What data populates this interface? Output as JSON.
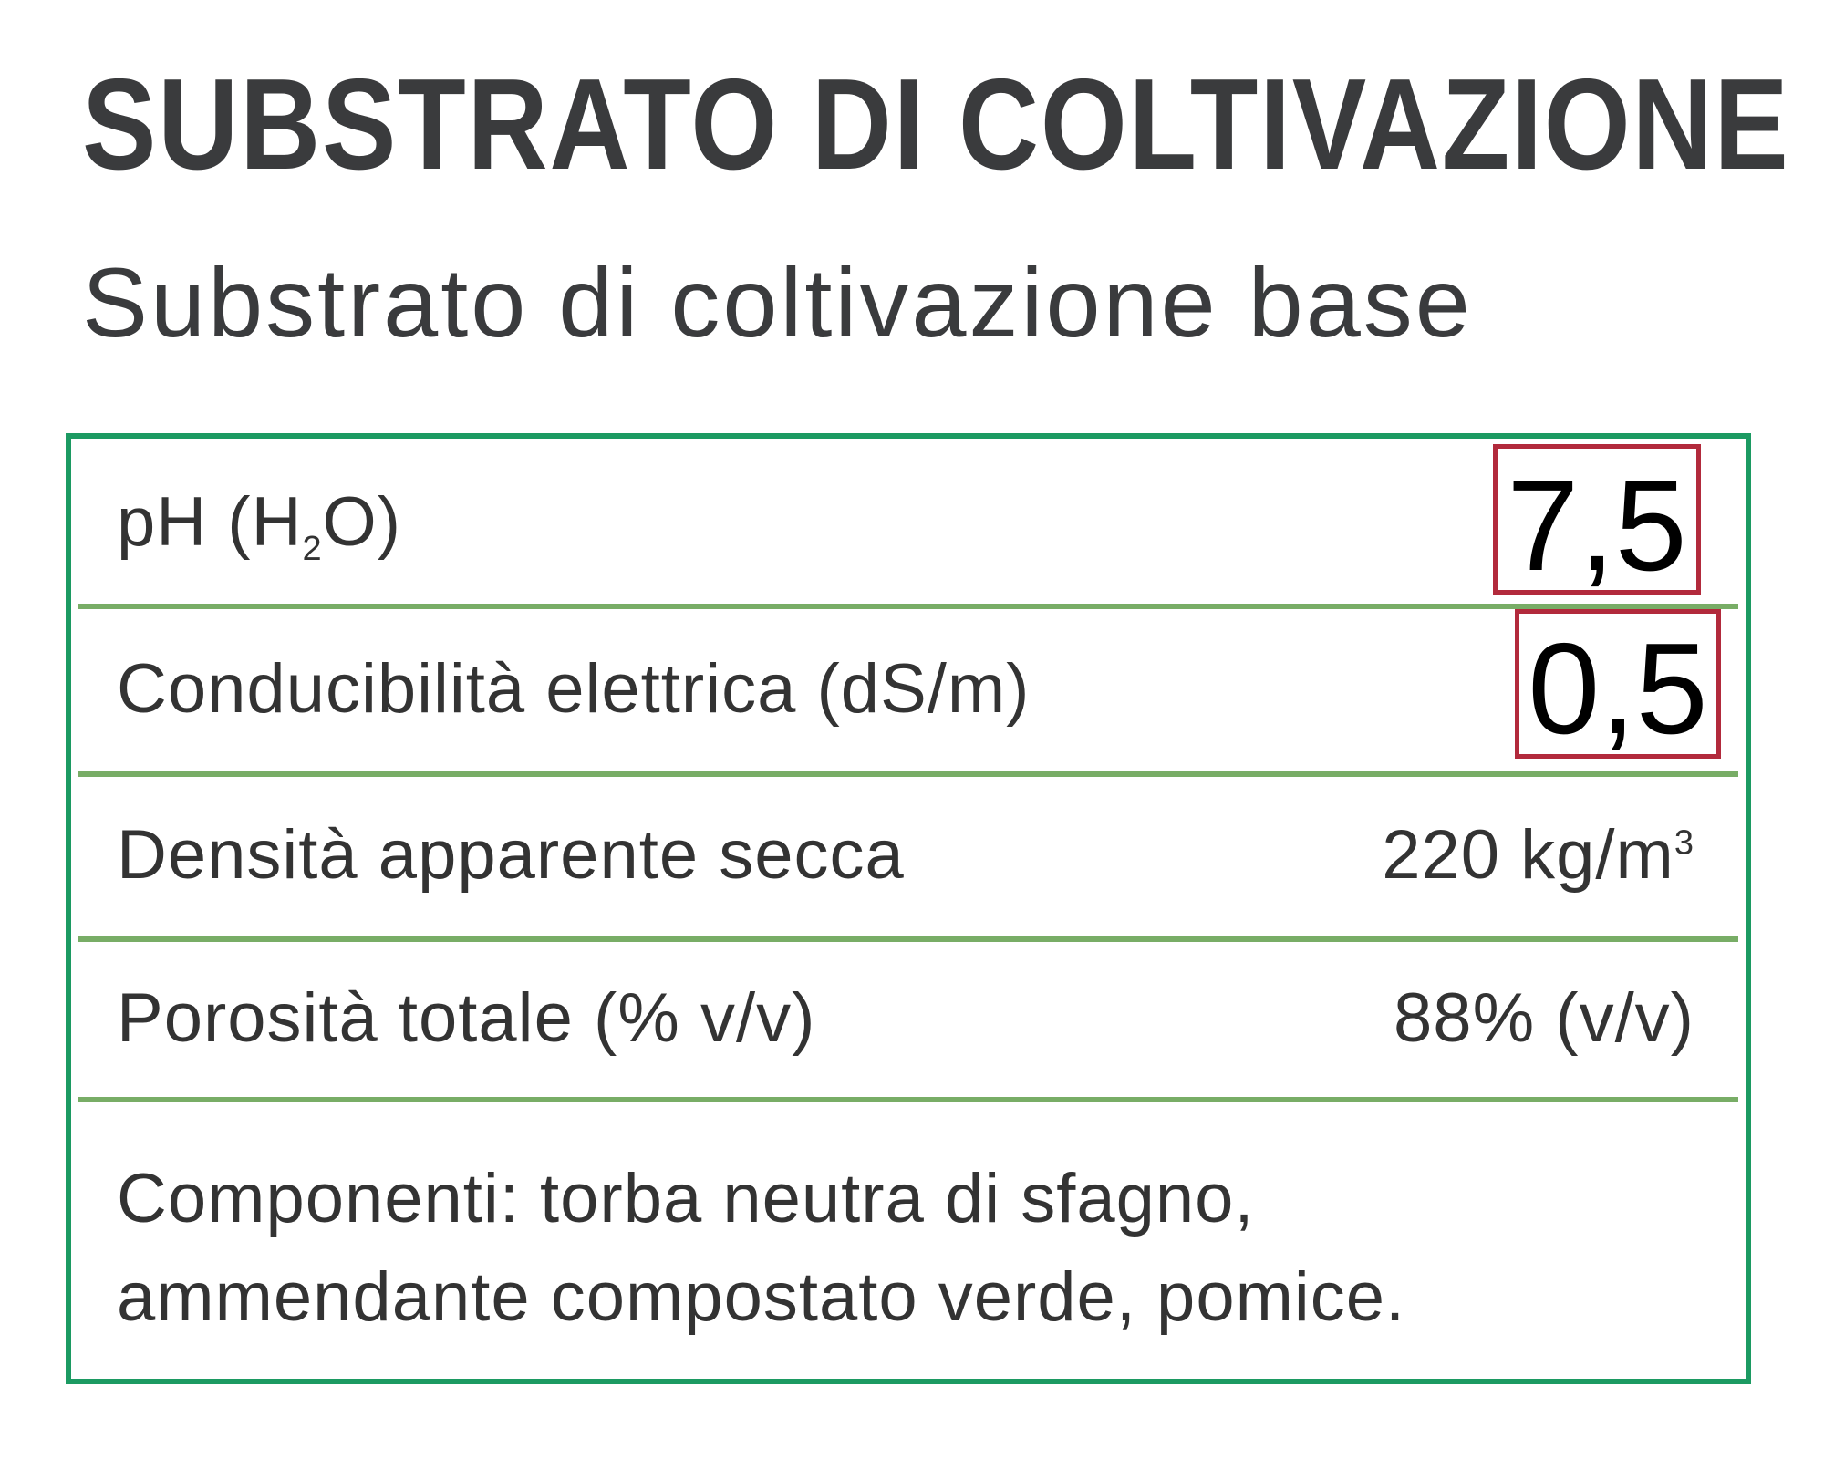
{
  "title": "SUBSTRATO DI COLTIVAZIONE",
  "subtitle": "Substrato di coltivazione base",
  "colors": {
    "border": "#1c9a62",
    "divider": "#78ad66",
    "highlight": "#b22a3c"
  },
  "rows": [
    {
      "label_main": "pH (H",
      "label_sub": "2",
      "label_end": "O)",
      "value": "7,5",
      "highlighted": true
    },
    {
      "label": "Conducibilità elettrica (dS/m)",
      "value": "0,5",
      "highlighted": true
    },
    {
      "label": "Densità apparente secca",
      "value_main": "220 kg/m",
      "value_sup": "3"
    },
    {
      "label": "Porosità totale (% v/v)",
      "value": "88% (v/v)"
    }
  ],
  "components": {
    "line1": "Componenti: torba neutra di sfagno,",
    "line2": "ammendante compostato verde, pomice."
  }
}
